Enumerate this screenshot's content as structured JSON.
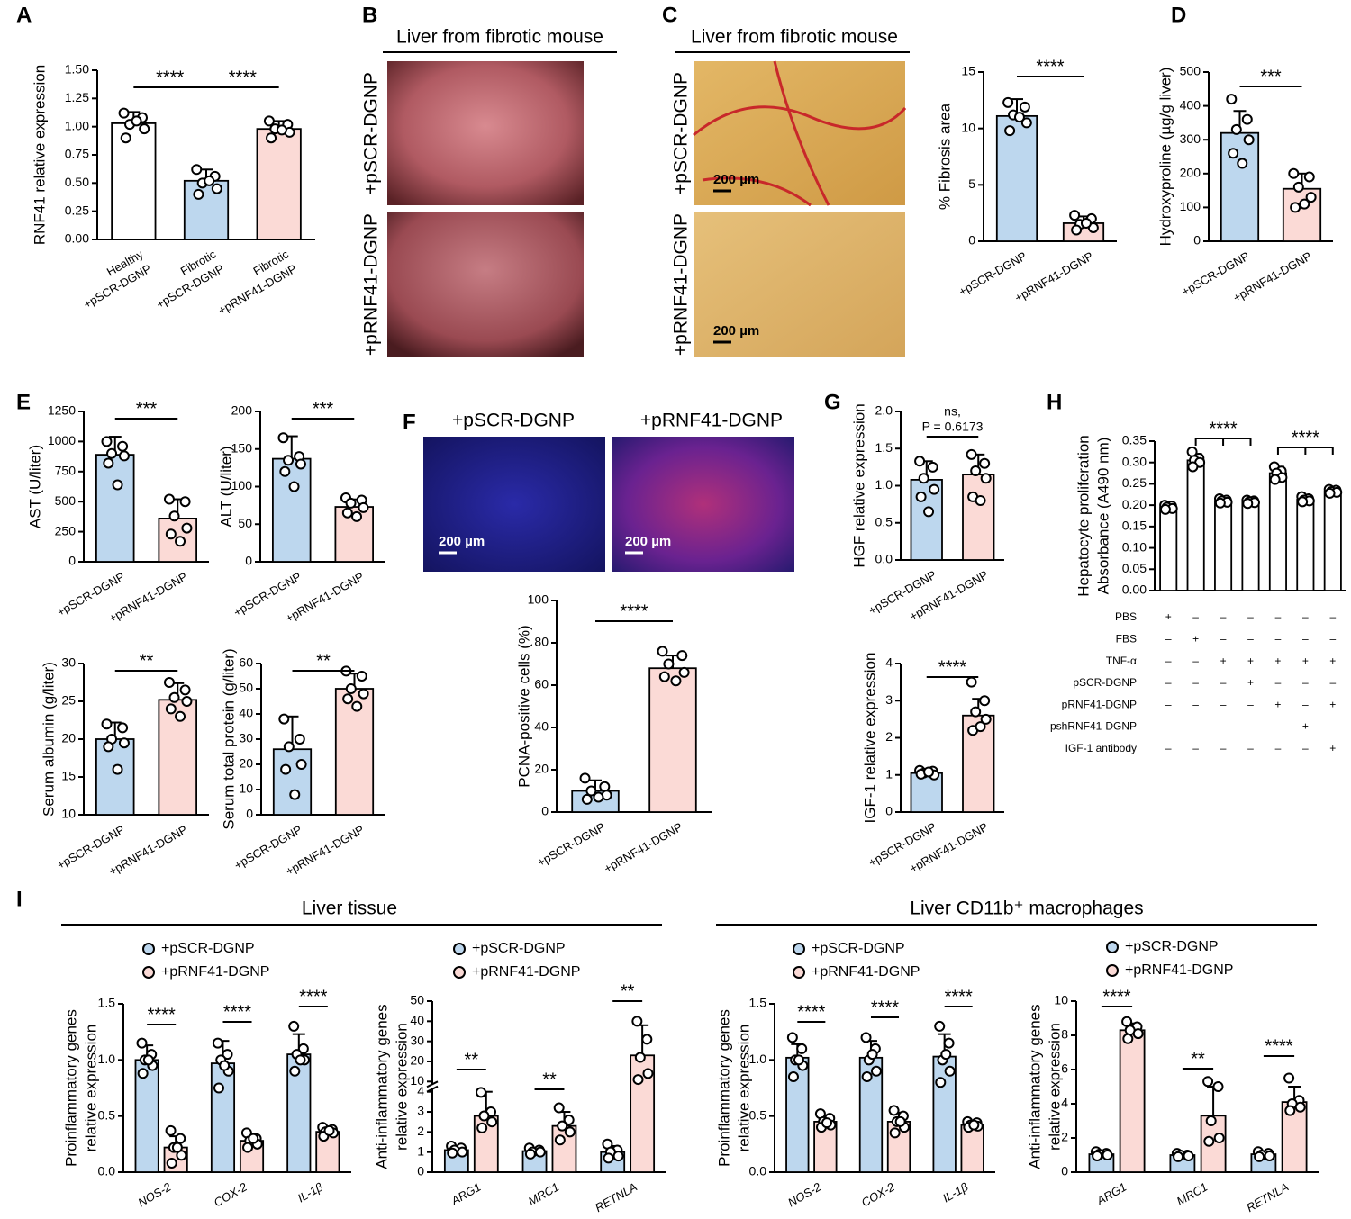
{
  "panel_labels": [
    "A",
    "B",
    "C",
    "D",
    "E",
    "F",
    "G",
    "H",
    "I"
  ],
  "group_titles": [
    "Liver tissue",
    "Liver CD11b⁺ macrophages"
  ],
  "image_panels": [
    {
      "title": "Liver from fibrotic mouse",
      "labels": [
        "+pSCR-DGNP",
        "+pRNF41-DGNP"
      ]
    },
    {
      "title": "Liver from fibrotic mouse",
      "labels": [
        "+pSCR-DGNP",
        "+pRNF41-DGNP"
      ],
      "scale_bars": [
        "200 µm",
        "200 µm"
      ]
    },
    {
      "labels": [
        "+pSCR-DGNP",
        "+pRNF41-DGNP"
      ],
      "scale_bars": [
        "200 µm",
        "200 µm"
      ]
    }
  ],
  "chart_data": [
    {
      "type": "bar",
      "ylabel": "RNF41 relative expression",
      "categories": [
        [
          "Healthy",
          "+pSCR-DGNP"
        ],
        [
          "Fibrotic",
          "+pSCR-DGNP"
        ],
        [
          "Fibrotic",
          "+pRNF41-DGNP"
        ]
      ],
      "values": [
        1.03,
        0.52,
        0.98
      ],
      "errors": [
        0.1,
        0.1,
        0.07
      ],
      "points": [
        [
          1.12,
          1.08,
          1.02,
          0.98,
          0.9,
          1.05
        ],
        [
          0.62,
          0.56,
          0.5,
          0.45,
          0.4,
          0.52
        ],
        [
          1.05,
          1.02,
          0.98,
          0.95,
          0.9,
          0.97
        ]
      ],
      "colors": [
        "#ffffff",
        "#bdd7ee",
        "#fbdad6"
      ],
      "ylim": [
        0,
        1.5
      ],
      "yticks": [
        {
          "value": 0,
          "label": "0.00"
        },
        0.25,
        {
          "value": 0.5,
          "label": "0.50"
        },
        0.75,
        {
          "value": 1,
          "label": "1.00"
        },
        1.25,
        {
          "value": 1.5,
          "label": "1.50"
        }
      ],
      "annotations": [
        "****",
        "****"
      ]
    },
    {
      "type": "bar",
      "ylabel": "% Fibrosis area",
      "categories": [
        "+pSCR-DGNP",
        "+pRNF41-DGNP"
      ],
      "values": [
        11.1,
        1.6
      ],
      "errors": [
        1.5,
        0.6
      ],
      "points": [
        [
          12.3,
          11.9,
          11.2,
          10.5,
          9.8,
          11
        ],
        [
          2.3,
          2,
          1.5,
          1.2,
          1,
          1.6
        ]
      ],
      "colors": [
        "#bdd7ee",
        "#fbdad6"
      ],
      "ylim": [
        0,
        15
      ],
      "yticks": [
        0,
        5,
        10,
        15
      ],
      "annotations": [
        "****"
      ]
    },
    {
      "type": "bar",
      "ylabel": "Hydroxyproline (µg/g liver)",
      "categories": [
        "+pSCR-DGNP",
        "+pRNF41-DGNP"
      ],
      "values": [
        320,
        155
      ],
      "errors": [
        65,
        45
      ],
      "points": [
        [
          420,
          360,
          330,
          300,
          260,
          230
        ],
        [
          200,
          190,
          160,
          130,
          100,
          110
        ]
      ],
      "colors": [
        "#bdd7ee",
        "#fbdad6"
      ],
      "ylim": [
        0,
        500
      ],
      "yticks": [
        0,
        100,
        200,
        300,
        400,
        500
      ],
      "annotations": [
        "***"
      ]
    },
    {
      "type": "bar",
      "ylabel": "AST (U/liter)",
      "categories": [
        "+pSCR-DGNP",
        "+pRNF41-DGNP"
      ],
      "values": [
        890,
        360
      ],
      "errors": [
        150,
        160
      ],
      "points": [
        [
          1000,
          960,
          900,
          880,
          820,
          640
        ],
        [
          520,
          500,
          380,
          280,
          230,
          170
        ]
      ],
      "colors": [
        "#bdd7ee",
        "#fbdad6"
      ],
      "ylim": [
        0,
        1250
      ],
      "yticks": [
        0,
        250,
        500,
        750,
        1000,
        1250
      ],
      "annotations": [
        "***"
      ]
    },
    {
      "type": "bar",
      "ylabel": "ALT (U/liter)",
      "categories": [
        "+pSCR-DGNP",
        "+pRNF41-DGNP"
      ],
      "values": [
        137,
        73
      ],
      "errors": [
        30,
        10
      ],
      "points": [
        [
          165,
          140,
          135,
          130,
          120,
          100
        ],
        [
          85,
          82,
          78,
          72,
          65,
          60
        ]
      ],
      "colors": [
        "#bdd7ee",
        "#fbdad6"
      ],
      "ylim": [
        0,
        200
      ],
      "yticks": [
        0,
        50,
        100,
        150,
        200
      ],
      "annotations": [
        "***"
      ]
    },
    {
      "type": "bar",
      "ylabel": "Serum albumin (g/liter)",
      "categories": [
        "+pSCR-DGNP",
        "+pRNF41-DGNP"
      ],
      "values": [
        20,
        25.2
      ],
      "errors": [
        2.2,
        2.2
      ],
      "points": [
        [
          22,
          21.5,
          20,
          19.5,
          19,
          16
        ],
        [
          27.5,
          26.5,
          25.5,
          25,
          24,
          23
        ]
      ],
      "colors": [
        "#bdd7ee",
        "#fbdad6"
      ],
      "ylim": [
        10,
        30
      ],
      "yticks": [
        10,
        15,
        20,
        25,
        30
      ],
      "annotations": [
        "**"
      ]
    },
    {
      "type": "bar",
      "ylabel": "Serum total protein (g/liter)",
      "categories": [
        "+pSCR-DGNP",
        "+pRNF41-DGNP"
      ],
      "values": [
        26,
        50
      ],
      "errors": [
        13,
        6
      ],
      "points": [
        [
          38,
          30,
          27,
          20,
          18,
          8
        ],
        [
          57,
          55,
          50,
          48,
          46,
          43
        ]
      ],
      "colors": [
        "#bdd7ee",
        "#fbdad6"
      ],
      "ylim": [
        0,
        60
      ],
      "yticks": [
        0,
        10,
        20,
        30,
        40,
        50,
        60
      ],
      "annotations": [
        "**"
      ]
    },
    {
      "type": "bar",
      "ylabel": "PCNA-positive cells (%)",
      "categories": [
        "+pSCR-DGNP",
        "+pRNF41-DGNP"
      ],
      "values": [
        10,
        68
      ],
      "errors": [
        5,
        6
      ],
      "points": [
        [
          16,
          12,
          10,
          8,
          6,
          7
        ],
        [
          76,
          74,
          70,
          66,
          64,
          62
        ]
      ],
      "colors": [
        "#bdd7ee",
        "#fbdad6"
      ],
      "ylim": [
        0,
        100
      ],
      "yticks": [
        0,
        20,
        40,
        60,
        80,
        100
      ],
      "annotations": [
        "****"
      ]
    },
    {
      "type": "bar",
      "ylabel": "HGF relative expression",
      "categories": [
        "+pSCR-DGNP",
        "+pRNF41-DGNP"
      ],
      "values": [
        1.08,
        1.15
      ],
      "errors": [
        0.25,
        0.27
      ],
      "points": [
        [
          1.33,
          1.25,
          1.1,
          0.95,
          0.85,
          0.65
        ],
        [
          1.42,
          1.3,
          1.2,
          1.1,
          0.85,
          0.8
        ]
      ],
      "colors": [
        "#bdd7ee",
        "#fbdad6"
      ],
      "ylim": [
        0,
        2
      ],
      "yticks": [
        {
          "value": 0,
          "label": "0.0"
        },
        0.5,
        {
          "value": 1,
          "label": "1.0"
        },
        1.5,
        {
          "value": 2,
          "label": "2.0"
        }
      ],
      "annotations": [
        "ns,",
        "P = 0.6173"
      ]
    },
    {
      "type": "bar",
      "ylabel": "IGF-1 relative expression",
      "categories": [
        "+pSCR-DGNP",
        "+pRNF41-DGNP"
      ],
      "values": [
        1.05,
        2.6
      ],
      "errors": [
        0.08,
        0.45
      ],
      "points": [
        [
          1.12,
          1.1,
          1.05,
          1,
          1.02,
          1.08
        ],
        [
          3.5,
          3,
          2.7,
          2.5,
          2.2,
          2.3
        ]
      ],
      "colors": [
        "#bdd7ee",
        "#fbdad6"
      ],
      "ylim": [
        0,
        4
      ],
      "yticks": [
        0,
        1,
        2,
        3,
        4
      ],
      "annotations": [
        "****"
      ]
    },
    {
      "type": "bar",
      "ylabel": [
        "Hepatocyte proliferation",
        "Absorbance (A490 nm)"
      ],
      "values": [
        0.195,
        0.305,
        0.21,
        0.208,
        0.275,
        0.213,
        0.232
      ],
      "errors": [
        0.007,
        0.015,
        0.005,
        0.004,
        0.015,
        0.006,
        0.005
      ],
      "points": [
        [
          0.2,
          0.198,
          0.195,
          0.192,
          0.19
        ],
        [
          0.325,
          0.31,
          0.305,
          0.3,
          0.29
        ],
        [
          0.215,
          0.212,
          0.21,
          0.207,
          0.205
        ],
        [
          0.212,
          0.21,
          0.208,
          0.206,
          0.204
        ],
        [
          0.29,
          0.28,
          0.275,
          0.265,
          0.26
        ],
        [
          0.22,
          0.215,
          0.212,
          0.21,
          0.208
        ],
        [
          0.237,
          0.235,
          0.232,
          0.23,
          0.228
        ]
      ],
      "colors": [
        "#ffffff",
        "#ffffff",
        "#ffffff",
        "#ffffff",
        "#ffffff",
        "#ffffff",
        "#ffffff"
      ],
      "ylim": [
        0,
        0.35
      ],
      "yticks": [
        {
          "value": 0,
          "label": "0.00"
        },
        0.05,
        {
          "value": 0.1,
          "label": "0.10"
        },
        0.15,
        {
          "value": 0.2,
          "label": "0.20"
        },
        0.25,
        {
          "value": 0.3,
          "label": "0.30"
        },
        0.35
      ],
      "annotations": [
        "****",
        "****"
      ],
      "treatments": [
        {
          "label": "PBS",
          "marks": [
            "+",
            "–",
            "–",
            "–",
            "–",
            "–",
            "–"
          ]
        },
        {
          "label": "FBS",
          "marks": [
            "–",
            "+",
            "–",
            "–",
            "–",
            "–",
            "–"
          ]
        },
        {
          "label": "TNF-α",
          "marks": [
            "–",
            "–",
            "+",
            "+",
            "+",
            "+",
            "+"
          ]
        },
        {
          "label": "pSCR-DGNP",
          "marks": [
            "–",
            "–",
            "–",
            "+",
            "–",
            "–",
            "–"
          ]
        },
        {
          "label": "pRNF41-DGNP",
          "marks": [
            "–",
            "–",
            "–",
            "–",
            "+",
            "–",
            "+"
          ]
        },
        {
          "label": "pshRNF41-DGNP",
          "marks": [
            "–",
            "–",
            "–",
            "–",
            "–",
            "+",
            "–"
          ]
        },
        {
          "label": "IGF-1 antibody",
          "marks": [
            "–",
            "–",
            "–",
            "–",
            "–",
            "–",
            "+"
          ]
        }
      ]
    },
    {
      "type": "grouped_bar",
      "ylabel": [
        "Proinflammatory genes",
        "relative expression"
      ],
      "categories": [
        "NOS-2",
        "COX-2",
        "IL-1β"
      ],
      "series": [
        {
          "name": "+pSCR-DGNP",
          "color": "#bdd7ee",
          "values": [
            1,
            0.97,
            1.05
          ],
          "errors": [
            0.13,
            0.2,
            0.18
          ],
          "points": [
            [
              1.15,
              1.05,
              1,
              0.95,
              0.88,
              1
            ],
            [
              1.15,
              1.05,
              1,
              0.9,
              0.75,
              0.95
            ],
            [
              1.3,
              1.1,
              1.05,
              1,
              0.9,
              1
            ]
          ]
        },
        {
          "name": "+pRNF41-DGNP",
          "color": "#fbdad6",
          "values": [
            0.22,
            0.28,
            0.36
          ],
          "errors": [
            0.1,
            0.06,
            0.04
          ],
          "points": [
            [
              0.37,
              0.3,
              0.22,
              0.15,
              0.08,
              0.22
            ],
            [
              0.35,
              0.3,
              0.28,
              0.25,
              0.22,
              0.3
            ],
            [
              0.4,
              0.38,
              0.36,
              0.35,
              0.32,
              0.37
            ]
          ]
        }
      ],
      "ylim": [
        0,
        1.5
      ],
      "yticks": [
        {
          "value": 0,
          "label": "0.0"
        },
        0.5,
        {
          "value": 1,
          "label": "1.0"
        },
        1.5
      ],
      "annotations": [
        "****",
        "****",
        "****"
      ]
    },
    {
      "type": "grouped_bar",
      "ylabel": [
        "Anti-inflammatory genes",
        "relative expression"
      ],
      "categories": [
        "ARG1",
        "MRC1",
        "RETNLA"
      ],
      "series": [
        {
          "name": "+pSCR-DGNP",
          "color": "#bdd7ee",
          "values": [
            1.1,
            1.05,
            1
          ],
          "errors": [
            0.2,
            0.15,
            0.3
          ],
          "points": [
            [
              1.3,
              1.2,
              1.1,
              1,
              0.95
            ],
            [
              1.2,
              1.1,
              1,
              1,
              0.9
            ],
            [
              1.4,
              1.1,
              1,
              0.8,
              0.7
            ]
          ]
        },
        {
          "name": "+pRNF41-DGNP",
          "color": "#fbdad6",
          "values": [
            2.8,
            2.3,
            23
          ],
          "errors": [
            1.2,
            0.7,
            15
          ],
          "points": [
            [
              4.6,
              3,
              2.8,
              2.5,
              2.2
            ],
            [
              3.2,
              2.6,
              2.3,
              2,
              1.6
            ],
            [
              40,
              31,
              22,
              14,
              11
            ]
          ]
        }
      ],
      "ylim": [
        0,
        50
      ],
      "ybreak": [
        4,
        10
      ],
      "yticks": [
        0,
        1,
        2,
        3,
        4,
        10,
        20,
        30,
        40,
        50
      ],
      "annotations": [
        "**",
        "**",
        "**"
      ]
    },
    {
      "type": "grouped_bar",
      "ylabel": [
        "Proinflammatory genes",
        "relative expression"
      ],
      "categories": [
        "NOS-2",
        "COX-2",
        "IL-1β"
      ],
      "series": [
        {
          "name": "+pSCR-DGNP",
          "color": "#bdd7ee",
          "values": [
            1.02,
            1.02,
            1.03
          ],
          "errors": [
            0.12,
            0.15,
            0.2
          ],
          "points": [
            [
              1.2,
              1.1,
              1,
              0.95,
              0.85,
              1
            ],
            [
              1.2,
              1.1,
              1,
              0.9,
              0.85,
              1.05
            ],
            [
              1.3,
              1.15,
              1,
              0.9,
              0.8,
              1.05
            ]
          ]
        },
        {
          "name": "+pRNF41-DGNP",
          "color": "#fbdad6",
          "values": [
            0.45,
            0.45,
            0.42
          ],
          "errors": [
            0.05,
            0.08,
            0.03
          ],
          "points": [
            [
              0.52,
              0.48,
              0.45,
              0.42,
              0.4,
              0.44
            ],
            [
              0.55,
              0.5,
              0.45,
              0.4,
              0.35,
              0.45
            ],
            [
              0.45,
              0.44,
              0.42,
              0.41,
              0.4,
              0.42
            ]
          ]
        }
      ],
      "ylim": [
        0,
        1.5
      ],
      "yticks": [
        {
          "value": 0,
          "label": "0.0"
        },
        0.5,
        {
          "value": 1,
          "label": "1.0"
        },
        1.5
      ],
      "annotations": [
        "****",
        "****",
        "****"
      ]
    },
    {
      "type": "grouped_bar",
      "ylabel": [
        "Anti-inflammatory genes",
        "relative expression"
      ],
      "categories": [
        "ARG1",
        "MRC1",
        "RETNLA"
      ],
      "series": [
        {
          "name": "+pSCR-DGNP",
          "color": "#bdd7ee",
          "values": [
            1.05,
            1,
            1.05
          ],
          "errors": [
            0.15,
            0.1,
            0.15
          ],
          "points": [
            [
              1.2,
              1.1,
              1.05,
              1,
              0.95
            ],
            [
              1.1,
              1,
              1,
              0.95,
              0.9
            ],
            [
              1.2,
              1.1,
              1,
              0.95,
              0.9
            ]
          ]
        },
        {
          "name": "+pRNF41-DGNP",
          "color": "#fbdad6",
          "values": [
            8.3,
            3.3,
            4.1
          ],
          "errors": [
            0.4,
            1.7,
            0.9
          ],
          "points": [
            [
              8.8,
              8.5,
              8.3,
              8.1,
              7.8
            ],
            [
              5.3,
              5,
              3,
              2,
              1.8
            ],
            [
              5.5,
              4.2,
              4,
              3.8,
              3.6
            ]
          ]
        }
      ],
      "ylim": [
        0,
        10
      ],
      "yticks": [
        0,
        2,
        4,
        6,
        8,
        10
      ],
      "annotations": [
        "****",
        "**",
        "****"
      ]
    }
  ]
}
